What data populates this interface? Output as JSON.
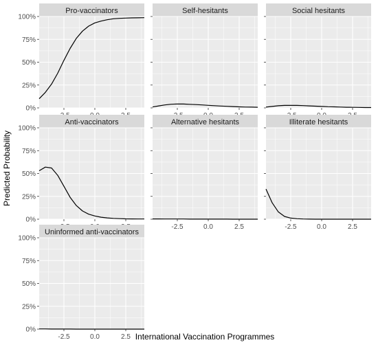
{
  "chart_data": {
    "type": "line",
    "xlabel": "International Vaccination Programmes",
    "ylabel": "Predicted Probability",
    "xlim": [
      -4.5,
      4.0
    ],
    "ylim": [
      0,
      1
    ],
    "x_ticks": [
      -2.5,
      0.0,
      2.5
    ],
    "x_tick_labels": [
      "-2.5",
      "0.0",
      "2.5"
    ],
    "y_ticks": [
      0,
      0.25,
      0.5,
      0.75,
      1.0
    ],
    "y_tick_labels": [
      "0%",
      "25%",
      "50%",
      "75%",
      "100%"
    ],
    "grid": true,
    "facet_layout": "3 columns, 3 rows",
    "colors": {
      "panel_bg": "#ebebeb",
      "strip_bg": "#d9d9d9",
      "grid": "#ffffff",
      "line": "#000000"
    },
    "panels": [
      {
        "title": "Pro-vaccinators",
        "x": [
          -4.5,
          -4,
          -3.5,
          -3,
          -2.5,
          -2,
          -1.5,
          -1,
          -0.5,
          0,
          0.5,
          1,
          1.5,
          2,
          2.5,
          3,
          3.5,
          4
        ],
        "values": [
          0.1,
          0.17,
          0.26,
          0.38,
          0.52,
          0.65,
          0.76,
          0.84,
          0.895,
          0.93,
          0.95,
          0.965,
          0.975,
          0.98,
          0.983,
          0.985,
          0.986,
          0.987
        ]
      },
      {
        "title": "Self-hesitants",
        "x": [
          -4.5,
          -4,
          -3.5,
          -3,
          -2.5,
          -2,
          -1.5,
          -1,
          -0.5,
          0,
          0.5,
          1,
          1.5,
          2,
          2.5,
          3,
          3.5,
          4
        ],
        "values": [
          0.01,
          0.022,
          0.032,
          0.04,
          0.043,
          0.042,
          0.039,
          0.036,
          0.032,
          0.028,
          0.024,
          0.02,
          0.017,
          0.014,
          0.011,
          0.009,
          0.008,
          0.007
        ]
      },
      {
        "title": "Social hesitants",
        "x": [
          -4.5,
          -4,
          -3.5,
          -3,
          -2.5,
          -2,
          -1.5,
          -1,
          -0.5,
          0,
          0.5,
          1,
          1.5,
          2,
          2.5,
          3,
          3.5,
          4
        ],
        "values": [
          0.008,
          0.016,
          0.023,
          0.027,
          0.028,
          0.027,
          0.025,
          0.022,
          0.019,
          0.016,
          0.013,
          0.011,
          0.009,
          0.007,
          0.006,
          0.005,
          0.004,
          0.004
        ]
      },
      {
        "title": "Anti-vaccinators",
        "x": [
          -4.5,
          -4,
          -3.5,
          -3,
          -2.5,
          -2,
          -1.5,
          -1,
          -0.5,
          0,
          0.5,
          1,
          1.5,
          2,
          2.5,
          3,
          3.5,
          4
        ],
        "values": [
          0.53,
          0.57,
          0.56,
          0.48,
          0.36,
          0.24,
          0.15,
          0.09,
          0.055,
          0.035,
          0.022,
          0.014,
          0.009,
          0.006,
          0.004,
          0.003,
          0.002,
          0.002
        ]
      },
      {
        "title": "Alternative hesitants",
        "x": [
          -4.5,
          -4,
          -3.5,
          -3,
          -2.5,
          -2,
          -1.5,
          -1,
          -0.5,
          0,
          0.5,
          1,
          1.5,
          2,
          2.5,
          3,
          3.5,
          4
        ],
        "values": [
          0.003,
          0.003,
          0.002,
          0.002,
          0.002,
          0.002,
          0.001,
          0.001,
          0.001,
          0.001,
          0.001,
          0.001,
          0.001,
          0.0,
          0.0,
          0.0,
          0.0,
          0.0
        ]
      },
      {
        "title": "Illiterate hesitants",
        "x": [
          -4.5,
          -4,
          -3.5,
          -3,
          -2.5,
          -2,
          -1.5,
          -1,
          -0.5,
          0,
          0.5,
          1,
          1.5,
          2,
          2.5,
          3,
          3.5,
          4
        ],
        "values": [
          0.33,
          0.18,
          0.08,
          0.03,
          0.012,
          0.005,
          0.002,
          0.001,
          0.0,
          0.0,
          0.0,
          0.0,
          0.0,
          0.0,
          0.0,
          0.0,
          0.0,
          0.0
        ]
      },
      {
        "title": "Uninformed anti-vaccinators",
        "x": [
          -4.5,
          -4,
          -3.5,
          -3,
          -2.5,
          -2,
          -1.5,
          -1,
          -0.5,
          0,
          0.5,
          1,
          1.5,
          2,
          2.5,
          3,
          3.5,
          4
        ],
        "values": [
          0.002,
          0.002,
          0.001,
          0.001,
          0.001,
          0.001,
          0.0,
          0.0,
          0.0,
          0.0,
          0.0,
          0.0,
          0.0,
          0.0,
          0.0,
          0.0,
          0.0,
          0.0
        ]
      }
    ]
  }
}
